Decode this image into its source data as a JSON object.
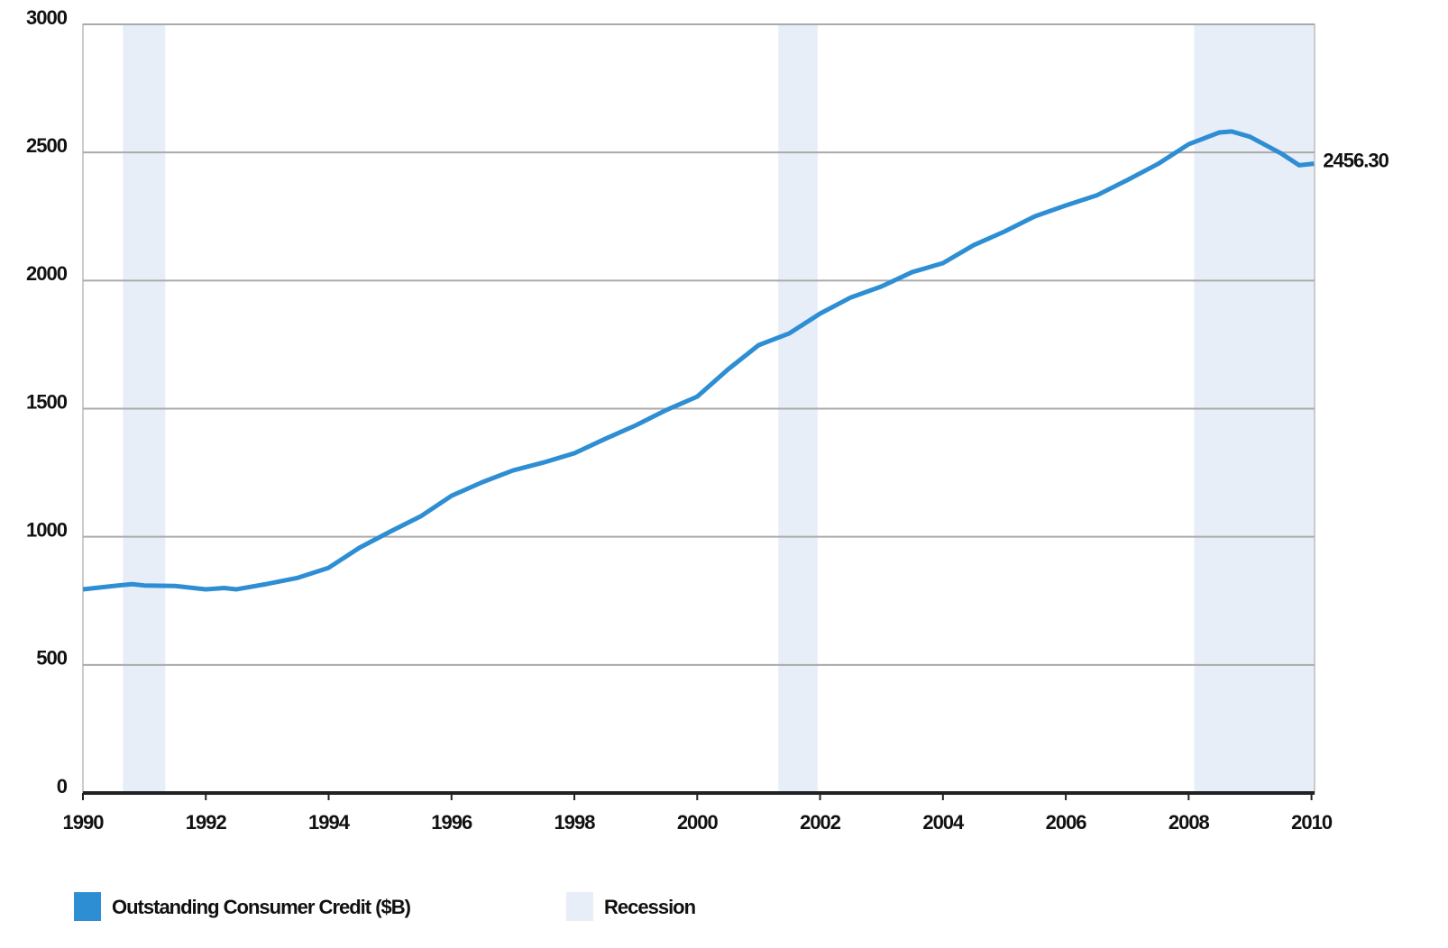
{
  "chart_data": {
    "type": "line",
    "x": [
      1990.0,
      1990.5,
      1990.8,
      1991.0,
      1991.5,
      1992.0,
      1992.3,
      1992.5,
      1993.0,
      1993.5,
      1994.0,
      1994.5,
      1995.0,
      1995.5,
      1996.0,
      1996.5,
      1997.0,
      1997.5,
      1998.0,
      1998.5,
      1999.0,
      1999.5,
      2000.0,
      2000.5,
      2001.0,
      2001.5,
      2002.0,
      2002.5,
      2003.0,
      2003.5,
      2004.0,
      2004.5,
      2005.0,
      2005.5,
      2006.0,
      2006.5,
      2007.0,
      2007.5,
      2008.0,
      2008.5,
      2008.7,
      2009.0,
      2009.5,
      2009.8,
      2010.04
    ],
    "series": [
      {
        "name": "Outstanding Consumer Credit ($B)",
        "color": "#2e8ed3",
        "values": [
          795,
          808,
          815,
          810,
          808,
          795,
          800,
          795,
          816,
          840,
          879,
          957,
          1020,
          1080,
          1160,
          1213,
          1259,
          1290,
          1326,
          1382,
          1435,
          1495,
          1547,
          1653,
          1748,
          1794,
          1871,
          1934,
          1977,
          2033,
          2068,
          2138,
          2191,
          2251,
          2293,
          2332,
          2392,
          2455,
          2532,
          2578,
          2582,
          2561,
          2497,
          2450,
          2456.3
        ],
        "value_labels": [
          null,
          null,
          null,
          null,
          null,
          null,
          null,
          null,
          null,
          null,
          null,
          null,
          null,
          null,
          null,
          null,
          null,
          null,
          null,
          null,
          null,
          null,
          null,
          null,
          null,
          null,
          null,
          null,
          null,
          null,
          null,
          null,
          null,
          null,
          null,
          null,
          null,
          null,
          null,
          null,
          null,
          null,
          null,
          null,
          "2456.30"
        ]
      }
    ],
    "recession": {
      "name": "Recession",
      "color": "#e8eef8",
      "spans": [
        [
          1990.65,
          1991.34
        ],
        [
          2001.32,
          2001.96
        ],
        [
          2008.09,
          2010.04
        ]
      ]
    },
    "xlim": [
      1990,
      2010.05
    ],
    "xticks": [
      1990,
      1992,
      1994,
      1996,
      1998,
      2000,
      2002,
      2004,
      2006,
      2008,
      2010
    ],
    "ylim": [
      0,
      3000
    ],
    "yticks": [
      0,
      500,
      1000,
      1500,
      2000,
      2500,
      3000
    ],
    "grid": true
  }
}
